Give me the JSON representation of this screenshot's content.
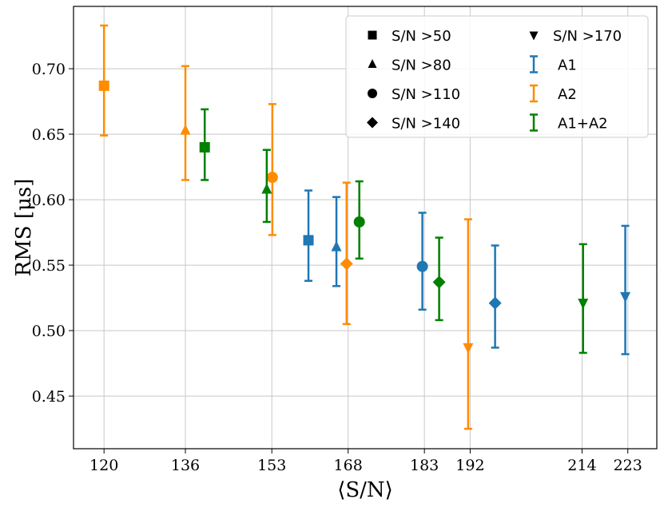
{
  "chart_data": {
    "type": "scatter",
    "title": "",
    "xlabel": "⟨S/N⟩",
    "ylabel": "RMS [μs]",
    "xlim": [
      114.0,
      228.7
    ],
    "ylim": [
      0.4098,
      0.7476
    ],
    "grid": true,
    "xticks": [
      120,
      136,
      153,
      168,
      183,
      192,
      214,
      223
    ],
    "xtick_labels": [
      "120",
      "136",
      "153",
      "168",
      "183",
      "192",
      "214",
      "223"
    ],
    "yticks": [
      0.45,
      0.5,
      0.55,
      0.6,
      0.65,
      0.7
    ],
    "ytick_labels": [
      "0.45",
      "0.50",
      "0.55",
      "0.60",
      "0.65",
      "0.70"
    ],
    "legend_position": "top-right",
    "markers": [
      {
        "label": "S/N >50",
        "shape": "square"
      },
      {
        "label": "S/N >80",
        "shape": "triangle-up"
      },
      {
        "label": "S/N >110",
        "shape": "circle"
      },
      {
        "label": "S/N >140",
        "shape": "diamond"
      },
      {
        "label": "S/N >170",
        "shape": "triangle-down"
      }
    ],
    "series": [
      {
        "name": "A1",
        "color": "#1f77b4",
        "points": [
          {
            "cut": "S/N >50",
            "x": 160.2,
            "y": 0.569,
            "ymax": 0.607,
            "ymin": 0.538
          },
          {
            "cut": "S/N >80",
            "x": 165.7,
            "y": 0.564,
            "ymax": 0.602,
            "ymin": 0.534
          },
          {
            "cut": "S/N >110",
            "x": 182.6,
            "y": 0.549,
            "ymax": 0.59,
            "ymin": 0.516
          },
          {
            "cut": "S/N >140",
            "x": 196.9,
            "y": 0.521,
            "ymax": 0.565,
            "ymin": 0.487
          },
          {
            "cut": "S/N >170",
            "x": 222.5,
            "y": 0.526,
            "ymax": 0.58,
            "ymin": 0.482
          }
        ]
      },
      {
        "name": "A2",
        "color": "#ff8c00",
        "points": [
          {
            "cut": "S/N >50",
            "x": 120.0,
            "y": 0.687,
            "ymax": 0.733,
            "ymin": 0.649
          },
          {
            "cut": "S/N >80",
            "x": 136.0,
            "y": 0.653,
            "ymax": 0.702,
            "ymin": 0.615
          },
          {
            "cut": "S/N >110",
            "x": 153.1,
            "y": 0.617,
            "ymax": 0.673,
            "ymin": 0.573
          },
          {
            "cut": "S/N >140",
            "x": 167.7,
            "y": 0.551,
            "ymax": 0.613,
            "ymin": 0.505
          },
          {
            "cut": "S/N >170",
            "x": 191.6,
            "y": 0.487,
            "ymax": 0.585,
            "ymin": 0.425
          }
        ]
      },
      {
        "name": "A1+A2",
        "color": "#008000",
        "points": [
          {
            "cut": "S/N >50",
            "x": 139.8,
            "y": 0.64,
            "ymax": 0.669,
            "ymin": 0.615
          },
          {
            "cut": "S/N >80",
            "x": 152.0,
            "y": 0.608,
            "ymax": 0.638,
            "ymin": 0.583
          },
          {
            "cut": "S/N >110",
            "x": 170.2,
            "y": 0.583,
            "ymax": 0.614,
            "ymin": 0.555
          },
          {
            "cut": "S/N >140",
            "x": 185.9,
            "y": 0.537,
            "ymax": 0.571,
            "ymin": 0.508
          },
          {
            "cut": "S/N >170",
            "x": 214.2,
            "y": 0.521,
            "ymax": 0.566,
            "ymin": 0.483
          }
        ]
      }
    ]
  }
}
